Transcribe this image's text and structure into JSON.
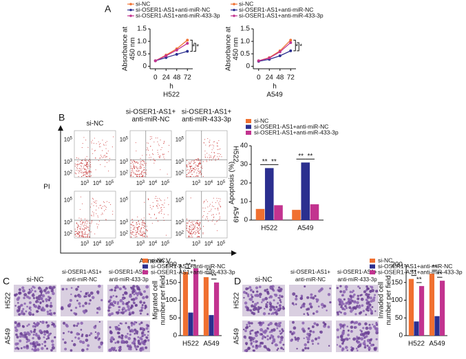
{
  "panel_labels": [
    "A",
    "B",
    "C",
    "D"
  ],
  "flow": {
    "columns": [
      [
        "si-NC"
      ],
      [
        "si-OSER1-AS1+",
        "anti-miR-NC"
      ],
      [
        "si-OSER1-AS1+",
        "anti-miR-433-3p"
      ]
    ],
    "rows": [
      "H522",
      "A549"
    ],
    "y_label": "PI",
    "x_label": "Annexin V",
    "tick_base": "10",
    "y_exps": [
      "5",
      "3",
      "2"
    ],
    "x_exps": [
      "3",
      "4",
      "5"
    ]
  },
  "micrographs": [
    {
      "columns": [
        [
          "si-NC"
        ],
        [
          "si-OSER1-AS1+",
          "anti-miR-NC"
        ],
        [
          "si-OSER1-AS1+",
          "anti-miR-433-3p"
        ]
      ],
      "rows": [
        "H522",
        "A549"
      ]
    },
    {
      "columns": [
        [
          "si-NC"
        ],
        [
          "si-OSER1-AS1+",
          "anti-miR-NC"
        ],
        [
          "si-OSER1-AS1+",
          "anti-miR-433-3p"
        ]
      ],
      "rows": [
        "H522",
        "A549"
      ]
    }
  ],
  "chart_data": [
    {
      "type": "line",
      "subtitle": "H522",
      "xlabel": "h",
      "ylabel": [
        "Absorbance at",
        "450 nm"
      ],
      "x": [
        0,
        24,
        48,
        72
      ],
      "xlim": [
        -12,
        84
      ],
      "xticks": [
        0,
        24,
        48,
        72
      ],
      "ylim": [
        -0.1,
        1.5
      ],
      "yticks": [
        0,
        0.5,
        {
          "value": 1,
          "label": "1.0"
        },
        1.5
      ],
      "series": [
        {
          "name": "si-NC",
          "color": "#f07030",
          "values": [
            0.22,
            0.45,
            0.7,
            1.05
          ]
        },
        {
          "name": "si-OSER1-AS1+anti-miR-NC",
          "color": "#2b2f8f",
          "values": [
            0.22,
            0.35,
            0.48,
            0.6
          ]
        },
        {
          "name": "si-OSER1-AS1+anti-miR-433-3p",
          "color": "#c2338f",
          "values": [
            0.22,
            0.42,
            0.65,
            0.92
          ]
        }
      ],
      "annotations": [
        "*",
        "*"
      ]
    },
    {
      "type": "line",
      "subtitle": "A549",
      "xlabel": "h",
      "ylabel": [
        "Absorbance at",
        "450 nm"
      ],
      "x": [
        0,
        24,
        48,
        72
      ],
      "xlim": [
        -12,
        84
      ],
      "xticks": [
        0,
        24,
        48,
        72
      ],
      "ylim": [
        -0.1,
        1.5
      ],
      "yticks": [
        0,
        0.5,
        {
          "value": 1,
          "label": "1.0"
        },
        1.5
      ],
      "series": [
        {
          "name": "si-NC",
          "color": "#f07030",
          "values": [
            0.22,
            0.35,
            0.62,
            1.05
          ]
        },
        {
          "name": "si-OSER1-AS1+anti-miR-NC",
          "color": "#2b2f8f",
          "values": [
            0.2,
            0.28,
            0.42,
            0.62
          ]
        },
        {
          "name": "si-OSER1-AS1+anti-miR-433-3p",
          "color": "#c2338f",
          "values": [
            0.22,
            0.33,
            0.58,
            0.95
          ]
        }
      ],
      "annotations": [
        "*",
        "*"
      ]
    },
    {
      "type": "bar",
      "ylabel": [
        "Apoptosis (%)"
      ],
      "categories": [
        "H522",
        "A549"
      ],
      "ylim": [
        0,
        40
      ],
      "yticks": [
        0,
        10,
        20,
        30,
        40
      ],
      "series": [
        {
          "name": "si-NC",
          "color": "#f07030",
          "values": [
            6,
            5.5
          ]
        },
        {
          "name": "si-OSER1-AS1+anti-miR-NC",
          "color": "#2b2f8f",
          "values": [
            28,
            31
          ]
        },
        {
          "name": "si-OSER1-AS1+anti-miR-433-3p",
          "color": "#c2338f",
          "values": [
            8,
            8.5
          ]
        }
      ],
      "annotations": [
        "**",
        "**",
        "**",
        "**"
      ]
    },
    {
      "type": "bar",
      "ylabel": [
        "Migrated cell",
        "number per field"
      ],
      "categories": [
        "H522",
        "A549"
      ],
      "ylim": [
        0,
        200
      ],
      "yticks": [
        0,
        50,
        100,
        150,
        200
      ],
      "series": [
        {
          "name": "si-NC",
          "color": "#f07030",
          "values": [
            180,
            165
          ]
        },
        {
          "name": "si-OSER1-AS1+anti-miR-NC",
          "color": "#2b2f8f",
          "values": [
            65,
            58
          ]
        },
        {
          "name": "si-OSER1-AS1+anti-miR-433-3p",
          "color": "#c2338f",
          "values": [
            190,
            150
          ]
        }
      ],
      "annotations": [
        "**",
        "**",
        "**",
        "**"
      ]
    },
    {
      "type": "bar",
      "ylabel": [
        "Invaded cell",
        "number per field"
      ],
      "categories": [
        "H522",
        "A549"
      ],
      "ylim": [
        0,
        200
      ],
      "yticks": [
        0,
        50,
        100,
        150,
        200
      ],
      "series": [
        {
          "name": "si-NC",
          "color": "#f07030",
          "values": [
            160,
            175
          ]
        },
        {
          "name": "si-OSER1-AS1+anti-miR-NC",
          "color": "#2b2f8f",
          "values": [
            40,
            55
          ]
        },
        {
          "name": "si-OSER1-AS1+anti-miR-433-3p",
          "color": "#c2338f",
          "values": [
            140,
            155
          ]
        }
      ],
      "annotations": [
        "**",
        "**",
        "**",
        "**"
      ]
    }
  ]
}
